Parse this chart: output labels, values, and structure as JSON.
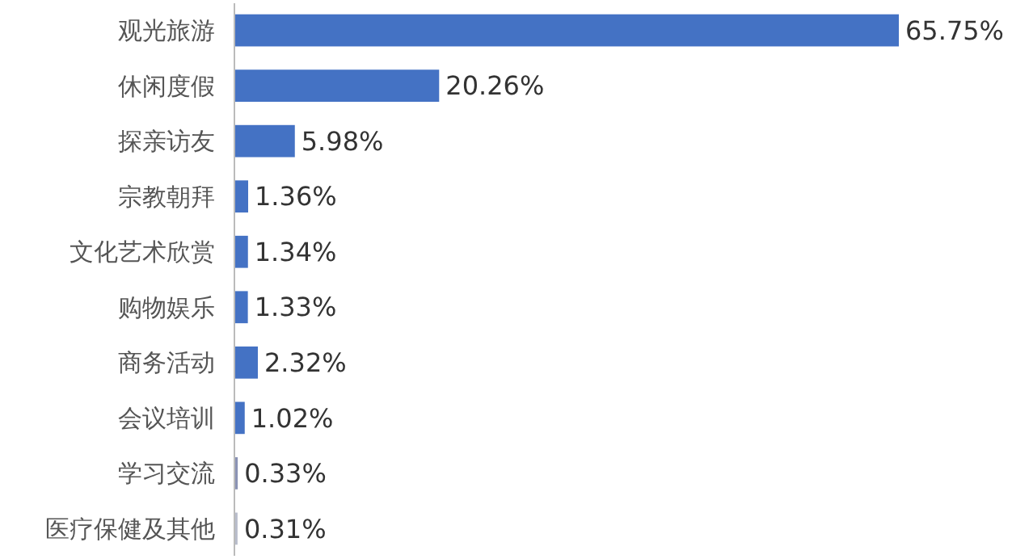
{
  "chart_data": {
    "type": "bar",
    "orientation": "horizontal",
    "categories": [
      "观光旅游",
      "休闲度假",
      "探亲访友",
      "宗教朝拜",
      "文化艺术欣赏",
      "购物娱乐",
      "商务活动",
      "会议培训",
      "学习交流",
      "医疗保健及其他"
    ],
    "values": [
      65.75,
      20.26,
      5.98,
      1.36,
      1.34,
      1.33,
      2.32,
      1.02,
      0.33,
      0.31
    ],
    "value_labels": [
      "65.75%",
      "20.26%",
      "5.98%",
      "1.36%",
      "1.34%",
      "1.33%",
      "2.32%",
      "1.02%",
      "0.33%",
      "0.31%"
    ],
    "colors": [
      "#4472c4",
      "#4472c4",
      "#4472c4",
      "#4472c4",
      "#4472c4",
      "#4472c4",
      "#4472c4",
      "#4472c4",
      "#8a92b4",
      "#b8bccb"
    ]
  }
}
